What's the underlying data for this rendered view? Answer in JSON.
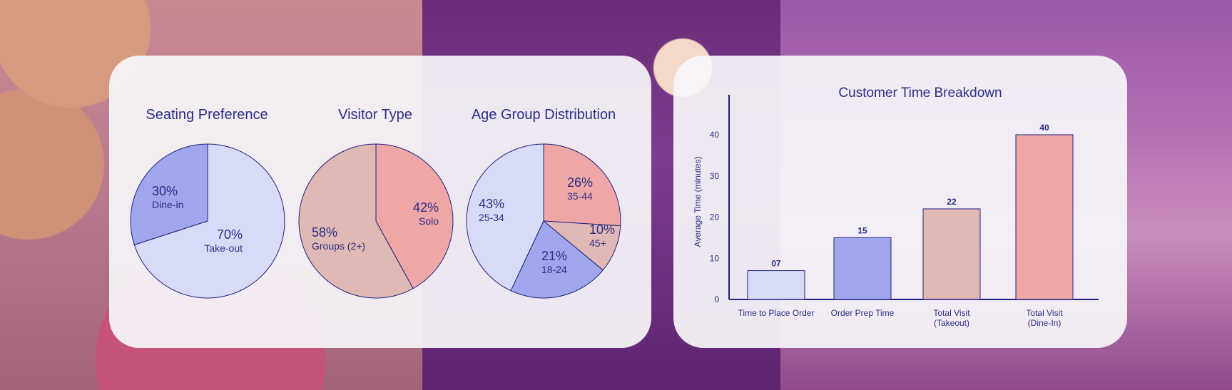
{
  "colors": {
    "light_lavender": "#d8dbf5",
    "periwinkle": "#a0a6ec",
    "salmon": "#eea6a6",
    "rose_beige": "#e0b8b4",
    "text_navy": "#2a2f86",
    "axis_navy": "#1e2280"
  },
  "chart_data": [
    {
      "type": "pie",
      "title": "Seating Preference",
      "slices": [
        {
          "label": "Take-out",
          "value": 70,
          "pct_label": "70%",
          "color": "#d8dbf5"
        },
        {
          "label": "Dine-in",
          "value": 30,
          "pct_label": "30%",
          "color": "#a0a6ec"
        }
      ]
    },
    {
      "type": "pie",
      "title": "Visitor Type",
      "slices": [
        {
          "label": "Solo",
          "value": 42,
          "pct_label": "42%",
          "color": "#eea6a6"
        },
        {
          "label": "Groups (2+)",
          "value": 58,
          "pct_label": "58%",
          "color": "#e0b8b4"
        }
      ]
    },
    {
      "type": "pie",
      "title": "Age Group Distribution",
      "slices": [
        {
          "label": "35-44",
          "value": 26,
          "pct_label": "26%",
          "color": "#eea6a6"
        },
        {
          "label": "45+",
          "value": 10,
          "pct_label": "10%",
          "color": "#e0b8b4"
        },
        {
          "label": "18-24",
          "value": 21,
          "pct_label": "21%",
          "color": "#a0a6ec"
        },
        {
          "label": "25-34",
          "value": 43,
          "pct_label": "43%",
          "color": "#d8dbf5"
        }
      ]
    },
    {
      "type": "bar",
      "title": "Customer Time Breakdown",
      "ylabel": "Average Time (minutes)",
      "ylim": [
        0,
        50
      ],
      "yticks": [
        "0",
        "10",
        "20",
        "30",
        "40"
      ],
      "categories": [
        [
          "Time to Place Order"
        ],
        [
          "Order Prep Time"
        ],
        [
          "Total Visit",
          "(Takeout)"
        ],
        [
          "Total Visit",
          "(Dine-In)"
        ]
      ],
      "values": [
        7,
        15,
        22,
        40
      ],
      "value_labels": [
        "07",
        "15",
        "22",
        "40"
      ],
      "bar_colors": [
        "#d8dbf5",
        "#a0a6ec",
        "#e0b8b4",
        "#eea6a6"
      ]
    }
  ]
}
